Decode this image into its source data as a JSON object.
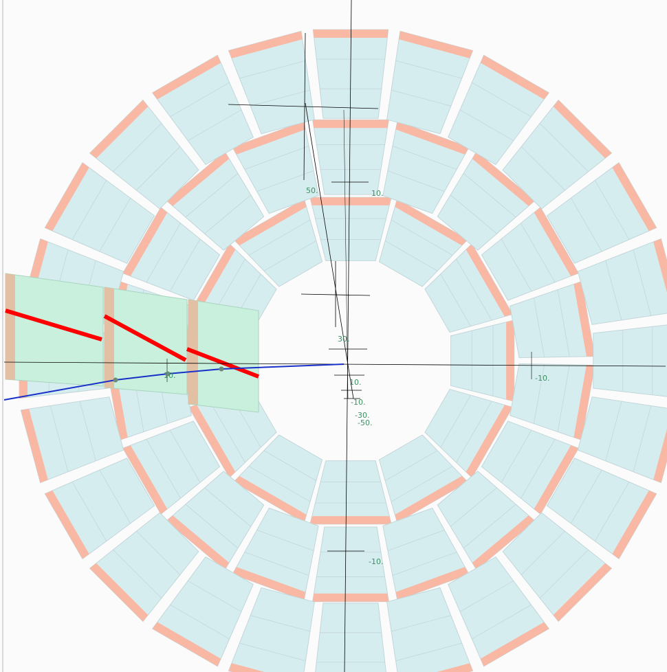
{
  "colors": {
    "background": "#fbfbfb",
    "module_fill": "#d6edf0",
    "module_stroke": "#c2d6d9",
    "readout_edge": "#f8b8a4",
    "highlight_fill": "#c8f0dd",
    "highlight_edge": "#e2c0a4",
    "hit_stripe": "#ff0000",
    "track": "#1830c8",
    "track_point": "#6e8a78",
    "axis": "#000000",
    "label": "#3c8f62"
  },
  "rings": [
    {
      "name": "inner",
      "modules": 12
    },
    {
      "name": "middle",
      "modules": 18
    },
    {
      "name": "outer",
      "modules": 24
    }
  ],
  "axis_labels": [
    {
      "text": "50.",
      "kind": "vertical"
    },
    {
      "text": "10.",
      "kind": "vertical"
    },
    {
      "text": "30.",
      "kind": "vertical"
    },
    {
      "text": "10.",
      "kind": "vertical"
    },
    {
      "text": "-10.",
      "kind": "vertical"
    },
    {
      "text": "-30.",
      "kind": "vertical"
    },
    {
      "text": "-50.",
      "kind": "vertical"
    },
    {
      "text": "-10.",
      "kind": "vertical"
    },
    {
      "text": "10.",
      "kind": "horizontal"
    },
    {
      "text": "-10.",
      "kind": "horizontal"
    }
  ]
}
